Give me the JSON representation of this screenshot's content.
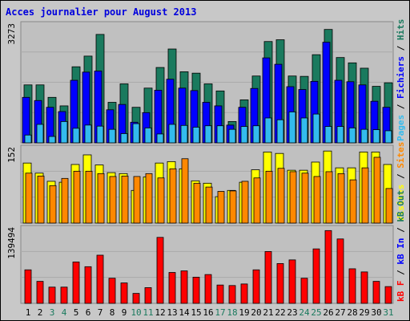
{
  "title": "Acces journalier pour August 2013",
  "colors": {
    "hits": "#1a7a5e",
    "files": "#0000ff",
    "pages": "#33bbee",
    "visits": "#ffff00",
    "sites": "#ff8800",
    "kbf": "#ff0000",
    "kbin": "#0000ff",
    "kbout": "#1a7a5e",
    "weekend_label": "#1a7a5e",
    "weekday_label": "#000000"
  },
  "chart_data": [
    {
      "type": "bar",
      "categories": [
        "1",
        "2",
        "3",
        "4",
        "5",
        "6",
        "7",
        "8",
        "9",
        "10",
        "11",
        "12",
        "13",
        "14",
        "15",
        "16",
        "17",
        "18",
        "19",
        "20",
        "21",
        "22",
        "23",
        "24",
        "25",
        "26",
        "27",
        "28",
        "29",
        "30",
        "31"
      ],
      "ymax_label": "3273",
      "ylim": [
        0,
        3273
      ],
      "legend": [
        {
          "text": "Pages",
          "color": "#33bbee"
        },
        {
          "text": "Fichiers",
          "color": "#0000ff"
        },
        {
          "text": "Hits",
          "color": "#1a7a5e"
        }
      ],
      "legend_separator": "/",
      "series": [
        {
          "name": "Hits",
          "values": [
            1630,
            1630,
            1280,
            1040,
            2140,
            2440,
            3050,
            1140,
            1660,
            1000,
            1540,
            2120,
            2640,
            2000,
            1960,
            1660,
            1460,
            600,
            1210,
            1880,
            2850,
            2900,
            1880,
            1870,
            2480,
            3190,
            2400,
            2250,
            2100,
            1590,
            1690
          ]
        },
        {
          "name": "Fichiers",
          "values": [
            1280,
            1190,
            1000,
            880,
            1760,
            1990,
            2020,
            930,
            1080,
            580,
            850,
            1480,
            1790,
            1540,
            1470,
            1140,
            1040,
            500,
            1000,
            1530,
            2390,
            2210,
            1580,
            1500,
            1730,
            2830,
            1760,
            1720,
            1630,
            1170,
            1000
          ]
        },
        {
          "name": "Pages",
          "values": [
            220,
            520,
            180,
            600,
            410,
            500,
            470,
            380,
            260,
            540,
            420,
            250,
            520,
            490,
            440,
            480,
            480,
            380,
            460,
            480,
            700,
            650,
            870,
            700,
            810,
            460,
            460,
            420,
            380,
            370,
            340
          ]
        }
      ]
    },
    {
      "type": "bar",
      "categories": [
        "1",
        "2",
        "3",
        "4",
        "5",
        "6",
        "7",
        "8",
        "9",
        "10",
        "11",
        "12",
        "13",
        "14",
        "15",
        "16",
        "17",
        "18",
        "19",
        "20",
        "21",
        "22",
        "23",
        "24",
        "25",
        "26",
        "27",
        "28",
        "29",
        "30",
        "31"
      ],
      "ymax_label": "152",
      "ylim": [
        0,
        152
      ],
      "legend": [
        {
          "text": "Visites",
          "color": "#ffff00"
        },
        {
          "text": "Sites",
          "color": "#ff8800"
        }
      ],
      "legend_separator": "/",
      "series": [
        {
          "name": "Visites",
          "values": [
            125,
            104,
            87,
            85,
            122,
            142,
            121,
            105,
            103,
            68,
            96,
            125,
            128,
            113,
            88,
            83,
            55,
            68,
            85,
            111,
            148,
            145,
            110,
            110,
            127,
            150,
            115,
            115,
            148,
            148,
            122
          ]
        },
        {
          "name": "Sites",
          "values": [
            104,
            98,
            78,
            93,
            108,
            108,
            103,
            97,
            98,
            97,
            103,
            94,
            113,
            134,
            83,
            75,
            66,
            67,
            87,
            94,
            108,
            114,
            107,
            104,
            97,
            107,
            103,
            90,
            115,
            137,
            72
          ]
        }
      ]
    },
    {
      "type": "bar",
      "categories": [
        "1",
        "2",
        "3",
        "4",
        "5",
        "6",
        "7",
        "8",
        "9",
        "10",
        "11",
        "12",
        "13",
        "14",
        "15",
        "16",
        "17",
        "18",
        "19",
        "20",
        "21",
        "22",
        "23",
        "24",
        "25",
        "26",
        "27",
        "28",
        "29",
        "30",
        "31"
      ],
      "ymax_label": "139494",
      "ylim": [
        0,
        139494
      ],
      "legend": [
        {
          "text": "kB F",
          "color": "#ff0000"
        },
        {
          "text": "kB In",
          "color": "#0000ff"
        },
        {
          "text": "kB Out",
          "color": "#1a7a5e"
        }
      ],
      "legend_separator": "/",
      "series": [
        {
          "name": "kB F",
          "values": [
            64000,
            42000,
            31000,
            31000,
            79000,
            70000,
            92000,
            48000,
            39000,
            19000,
            30000,
            126000,
            59000,
            62000,
            50000,
            55000,
            35000,
            34000,
            37000,
            64000,
            99000,
            76000,
            83000,
            48000,
            104000,
            139000,
            123000,
            66000,
            60000,
            42000,
            32000
          ]
        }
      ]
    }
  ],
  "days": [
    {
      "label": "1",
      "weekend": false
    },
    {
      "label": "2",
      "weekend": false
    },
    {
      "label": "3",
      "weekend": true
    },
    {
      "label": "4",
      "weekend": true
    },
    {
      "label": "5",
      "weekend": false
    },
    {
      "label": "6",
      "weekend": false
    },
    {
      "label": "7",
      "weekend": false
    },
    {
      "label": "8",
      "weekend": false
    },
    {
      "label": "9",
      "weekend": false
    },
    {
      "label": "10",
      "weekend": true
    },
    {
      "label": "11",
      "weekend": true
    },
    {
      "label": "12",
      "weekend": false
    },
    {
      "label": "13",
      "weekend": false
    },
    {
      "label": "14",
      "weekend": false
    },
    {
      "label": "15",
      "weekend": false
    },
    {
      "label": "16",
      "weekend": false
    },
    {
      "label": "17",
      "weekend": true
    },
    {
      "label": "18",
      "weekend": true
    },
    {
      "label": "19",
      "weekend": false
    },
    {
      "label": "20",
      "weekend": false
    },
    {
      "label": "21",
      "weekend": false
    },
    {
      "label": "22",
      "weekend": false
    },
    {
      "label": "23",
      "weekend": false
    },
    {
      "label": "24",
      "weekend": true
    },
    {
      "label": "25",
      "weekend": true
    },
    {
      "label": "26",
      "weekend": false
    },
    {
      "label": "27",
      "weekend": false
    },
    {
      "label": "28",
      "weekend": false
    },
    {
      "label": "29",
      "weekend": false
    },
    {
      "label": "30",
      "weekend": false
    },
    {
      "label": "31",
      "weekend": true
    }
  ]
}
